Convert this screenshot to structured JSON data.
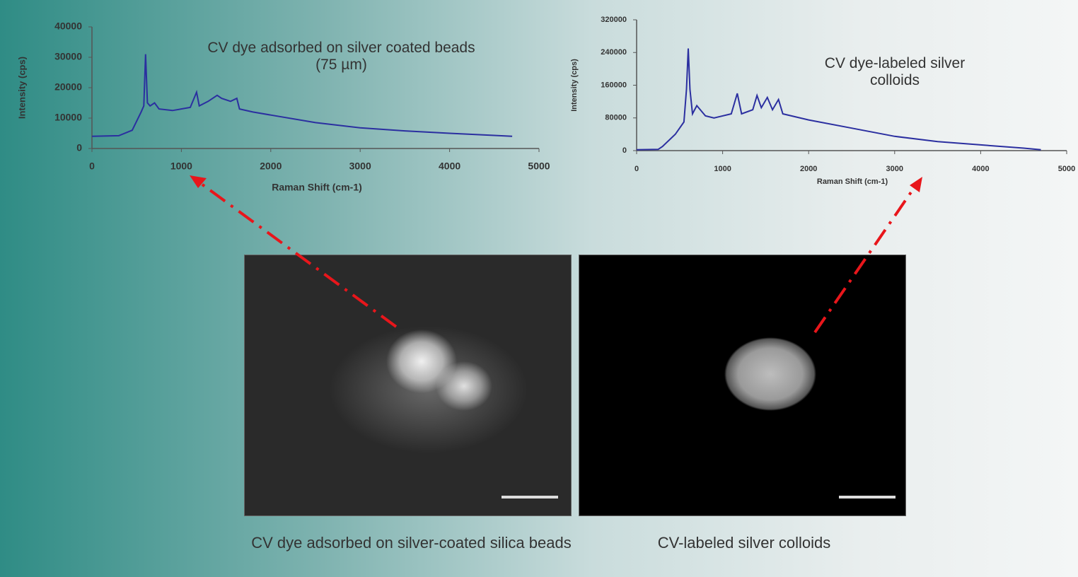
{
  "chart_data": [
    {
      "type": "line",
      "title": "CV dye adsorbed on  silver coated beads (75 µm)",
      "x_label": "Raman Shift (cm-1)",
      "y_label": "Intensity (cps)",
      "xlim": [
        0,
        5000
      ],
      "xticks": [
        0,
        1000,
        2000,
        3000,
        4000,
        5000
      ],
      "ylim": [
        0,
        40000
      ],
      "yticks": [
        0,
        10000,
        20000,
        30000,
        40000
      ],
      "color": "#2b2fa0",
      "x": [
        0,
        300,
        450,
        550,
        580,
        600,
        620,
        650,
        700,
        750,
        900,
        1100,
        1170,
        1200,
        1300,
        1400,
        1450,
        1550,
        1620,
        1650,
        1800,
        2000,
        2500,
        3000,
        3500,
        4000,
        4500,
        4700
      ],
      "values": [
        4000,
        4200,
        6000,
        12000,
        14000,
        31000,
        15000,
        14000,
        15000,
        13000,
        12500,
        13500,
        18500,
        14000,
        15500,
        17500,
        16500,
        15500,
        16500,
        13000,
        12000,
        11000,
        8500,
        6800,
        5800,
        5000,
        4300,
        4000
      ]
    },
    {
      "type": "line",
      "title": "CV dye-labeled silver colloids",
      "x_label": "Raman Shift (cm-1)",
      "y_label": "Intensity (cps)",
      "xlim": [
        0,
        5000
      ],
      "xticks": [
        0,
        1000,
        2000,
        3000,
        4000,
        5000
      ],
      "ylim": [
        0,
        320000
      ],
      "yticks": [
        0,
        80000,
        160000,
        240000,
        320000
      ],
      "color": "#2b2fa0",
      "x": [
        0,
        250,
        300,
        450,
        550,
        580,
        600,
        620,
        650,
        700,
        800,
        900,
        1100,
        1170,
        1220,
        1350,
        1400,
        1450,
        1520,
        1580,
        1650,
        1700,
        2000,
        2500,
        3000,
        3500,
        4000,
        4500,
        4700
      ],
      "values": [
        2000,
        3000,
        10000,
        40000,
        70000,
        150000,
        250000,
        150000,
        90000,
        110000,
        85000,
        80000,
        90000,
        140000,
        90000,
        100000,
        135000,
        105000,
        130000,
        100000,
        125000,
        90000,
        75000,
        55000,
        35000,
        22000,
        14000,
        6000,
        2000
      ]
    }
  ],
  "images": [
    {
      "caption": "CV dye adsorbed on silver-coated silica beads"
    },
    {
      "caption": "CV-labeled silver colloids"
    }
  ]
}
